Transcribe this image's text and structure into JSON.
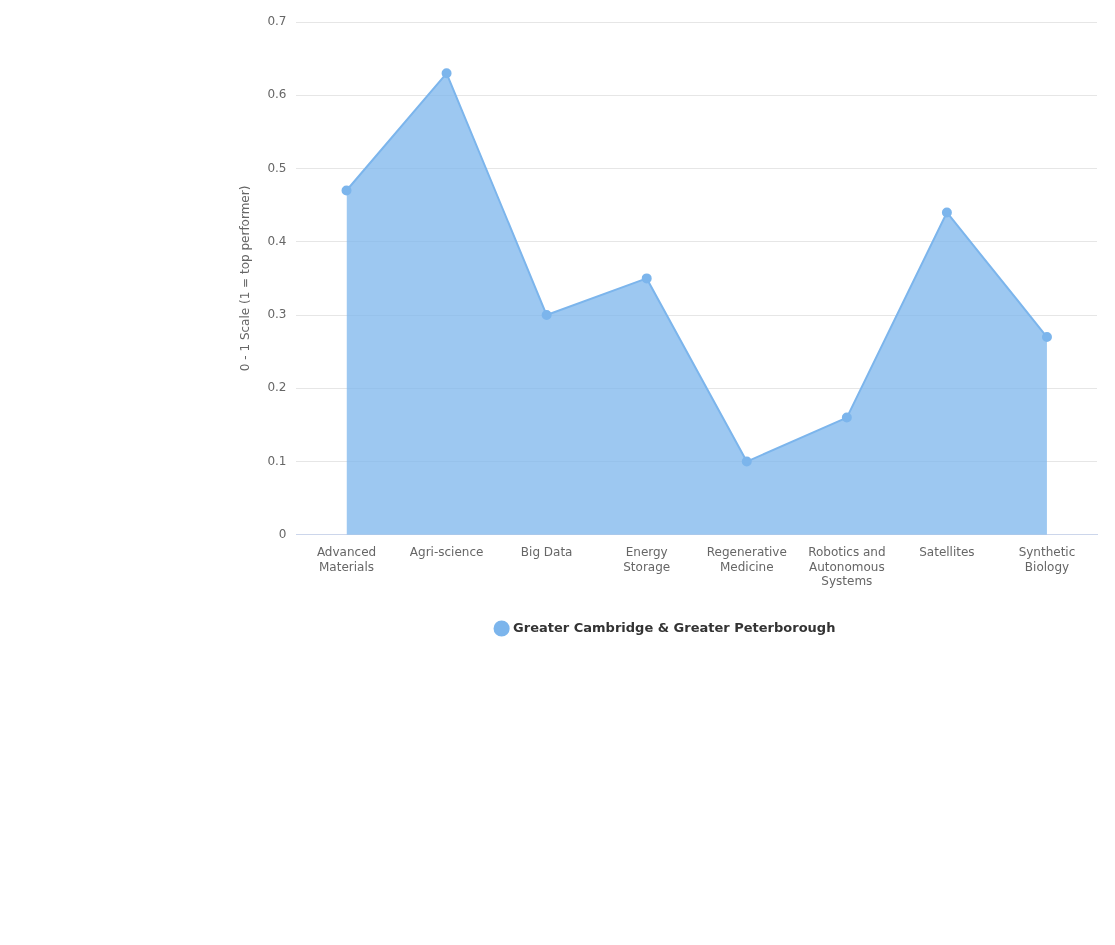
{
  "chart_data": {
    "type": "area",
    "ylabel": "0 - 1 Scale (1 = top performer)",
    "categories": [
      "Advanced Materials",
      "Agri-science",
      "Big Data",
      "Energy Storage",
      "Regenerative Medicine",
      "Robotics and Autonomous Systems",
      "Satellites",
      "Synthetic Biology"
    ],
    "series": [
      {
        "name": "Greater Cambridge & Greater Peterborough",
        "color": "#7cb5ec",
        "values": [
          0.47,
          0.63,
          0.3,
          0.35,
          0.1,
          0.16,
          0.44,
          0.27
        ]
      }
    ],
    "ylim": [
      0,
      0.7
    ],
    "yticks": [
      0,
      0.1,
      0.2,
      0.3,
      0.4,
      0.5,
      0.6,
      0.7
    ],
    "grid": "y",
    "legend": "bottom",
    "marker": "circle"
  }
}
